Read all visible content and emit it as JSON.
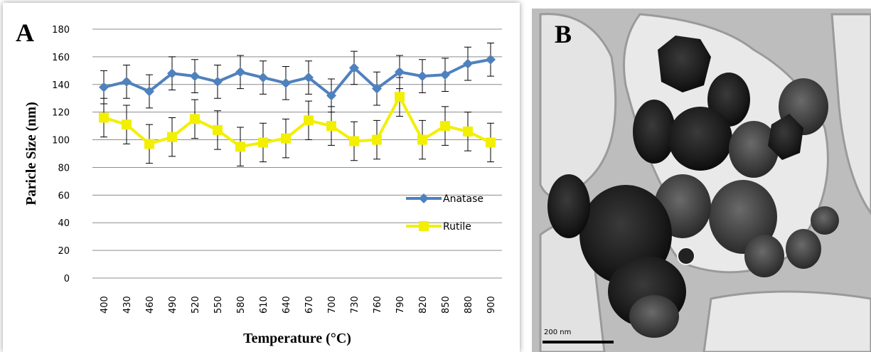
{
  "chart_data": {
    "type": "line",
    "panel_label": "A",
    "x_label": "Temperature (°C)",
    "y_label": "Paricle Size (nm)",
    "categories": [
      "400",
      "430",
      "460",
      "490",
      "520",
      "550",
      "580",
      "610",
      "640",
      "670",
      "700",
      "730",
      "760",
      "790",
      "820",
      "850",
      "880",
      "900"
    ],
    "series": [
      {
        "name": "Anatase",
        "color": "#4f81bd",
        "marker": "diamond",
        "values": [
          138,
          142,
          135,
          148,
          146,
          142,
          149,
          145,
          141,
          145,
          132,
          152,
          137,
          149,
          146,
          147,
          155,
          158
        ],
        "errors": [
          12,
          12,
          12,
          12,
          12,
          12,
          12,
          12,
          12,
          12,
          12,
          12,
          12,
          12,
          12,
          12,
          12,
          12
        ]
      },
      {
        "name": "Rutile",
        "color": "#f2ef00",
        "marker": "square",
        "values": [
          116,
          111,
          97,
          102,
          115,
          107,
          95,
          98,
          101,
          114,
          110,
          99,
          100,
          131,
          100,
          110,
          106,
          98
        ],
        "errors": [
          14,
          14,
          14,
          14,
          14,
          14,
          14,
          14,
          14,
          14,
          14,
          14,
          14,
          14,
          14,
          14,
          14,
          14
        ]
      }
    ],
    "ylim": [
      0,
      180
    ],
    "yticks": [
      0,
      20,
      40,
      60,
      80,
      100,
      120,
      140,
      160,
      180
    ],
    "grid": true,
    "legend_position": "center right"
  },
  "micrograph": {
    "panel_label": "B",
    "scale_bar_label": "200 nm"
  }
}
